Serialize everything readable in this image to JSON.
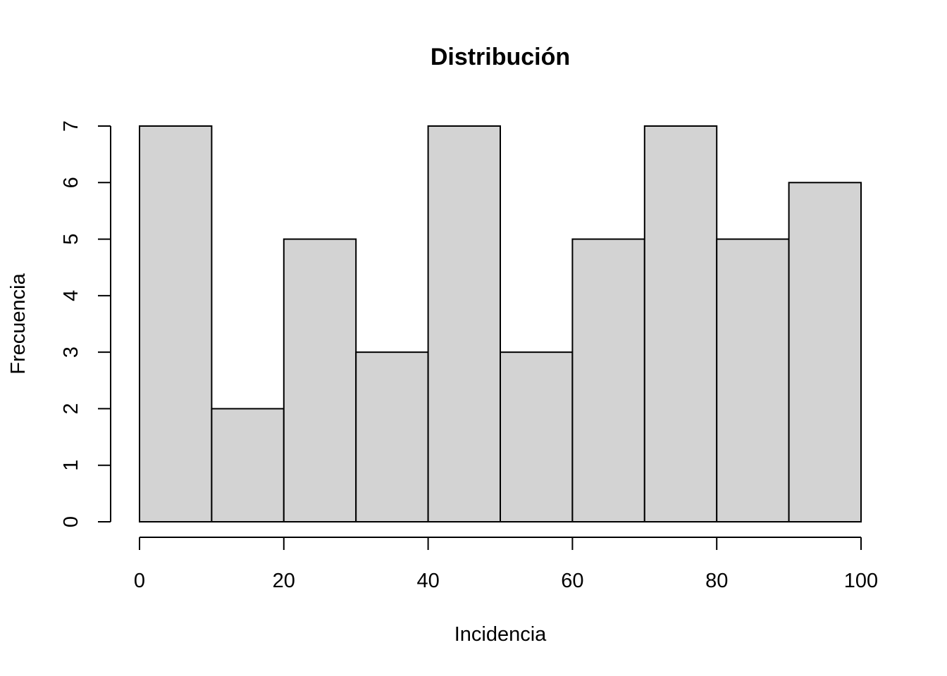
{
  "chart_data": {
    "type": "bar",
    "title": "Distribución",
    "xlabel": "Incidencia",
    "ylabel": "Frecuencia",
    "bins": [
      {
        "start": 0,
        "end": 10,
        "count": 7
      },
      {
        "start": 10,
        "end": 20,
        "count": 2
      },
      {
        "start": 20,
        "end": 30,
        "count": 5
      },
      {
        "start": 30,
        "end": 40,
        "count": 3
      },
      {
        "start": 40,
        "end": 50,
        "count": 7
      },
      {
        "start": 50,
        "end": 60,
        "count": 3
      },
      {
        "start": 60,
        "end": 70,
        "count": 5
      },
      {
        "start": 70,
        "end": 80,
        "count": 7
      },
      {
        "start": 80,
        "end": 90,
        "count": 5
      },
      {
        "start": 90,
        "end": 100,
        "count": 6
      }
    ],
    "xlim": [
      0,
      100
    ],
    "ylim": [
      0,
      7
    ],
    "x_ticks": [
      0,
      20,
      40,
      60,
      80,
      100
    ],
    "y_ticks": [
      0,
      1,
      2,
      3,
      4,
      5,
      6,
      7
    ],
    "bar_color": "#d3d3d3",
    "edge_color": "#000000",
    "grid": false
  }
}
